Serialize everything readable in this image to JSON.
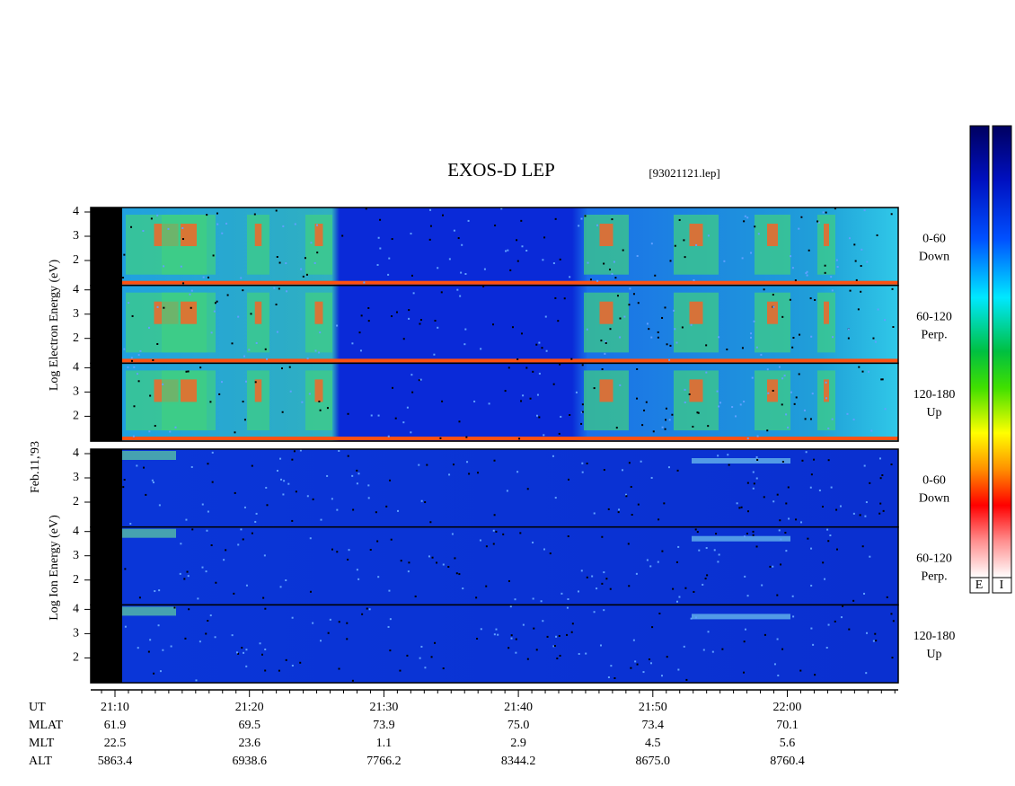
{
  "header": {
    "title": "EXOS-D LEP",
    "file": "[93021121.lep]"
  },
  "date": "Feb.11,'93",
  "yticks": [
    "4",
    "3",
    "2"
  ],
  "electron": {
    "ylabel": "Log Electron Energy (eV)",
    "panels": [
      {
        "angle": "0-60",
        "dir": "Down"
      },
      {
        "angle": "60-120",
        "dir": "Perp."
      },
      {
        "angle": "120-180",
        "dir": "Up"
      }
    ]
  },
  "ion": {
    "ylabel": "Log Ion Energy (eV)",
    "panels": [
      {
        "angle": "0-60",
        "dir": "Down"
      },
      {
        "angle": "60-120",
        "dir": "Perp."
      },
      {
        "angle": "120-180",
        "dir": "Up"
      }
    ]
  },
  "colorbar": {
    "labels": [
      "E",
      "I"
    ]
  },
  "axis": {
    "rows": [
      {
        "label": "UT",
        "values": [
          "21:10",
          "21:20",
          "21:30",
          "21:40",
          "21:50",
          "22:00"
        ]
      },
      {
        "label": "MLAT",
        "values": [
          "61.9",
          "69.5",
          "73.9",
          "75.0",
          "73.4",
          "70.1"
        ]
      },
      {
        "label": "MLT",
        "values": [
          "22.5",
          "23.6",
          "1.1",
          "2.9",
          "4.5",
          "5.6"
        ]
      },
      {
        "label": "ALT",
        "values": [
          "5863.4",
          "6938.6",
          "7766.2",
          "8344.2",
          "8675.0",
          "8760.4"
        ]
      }
    ]
  }
}
